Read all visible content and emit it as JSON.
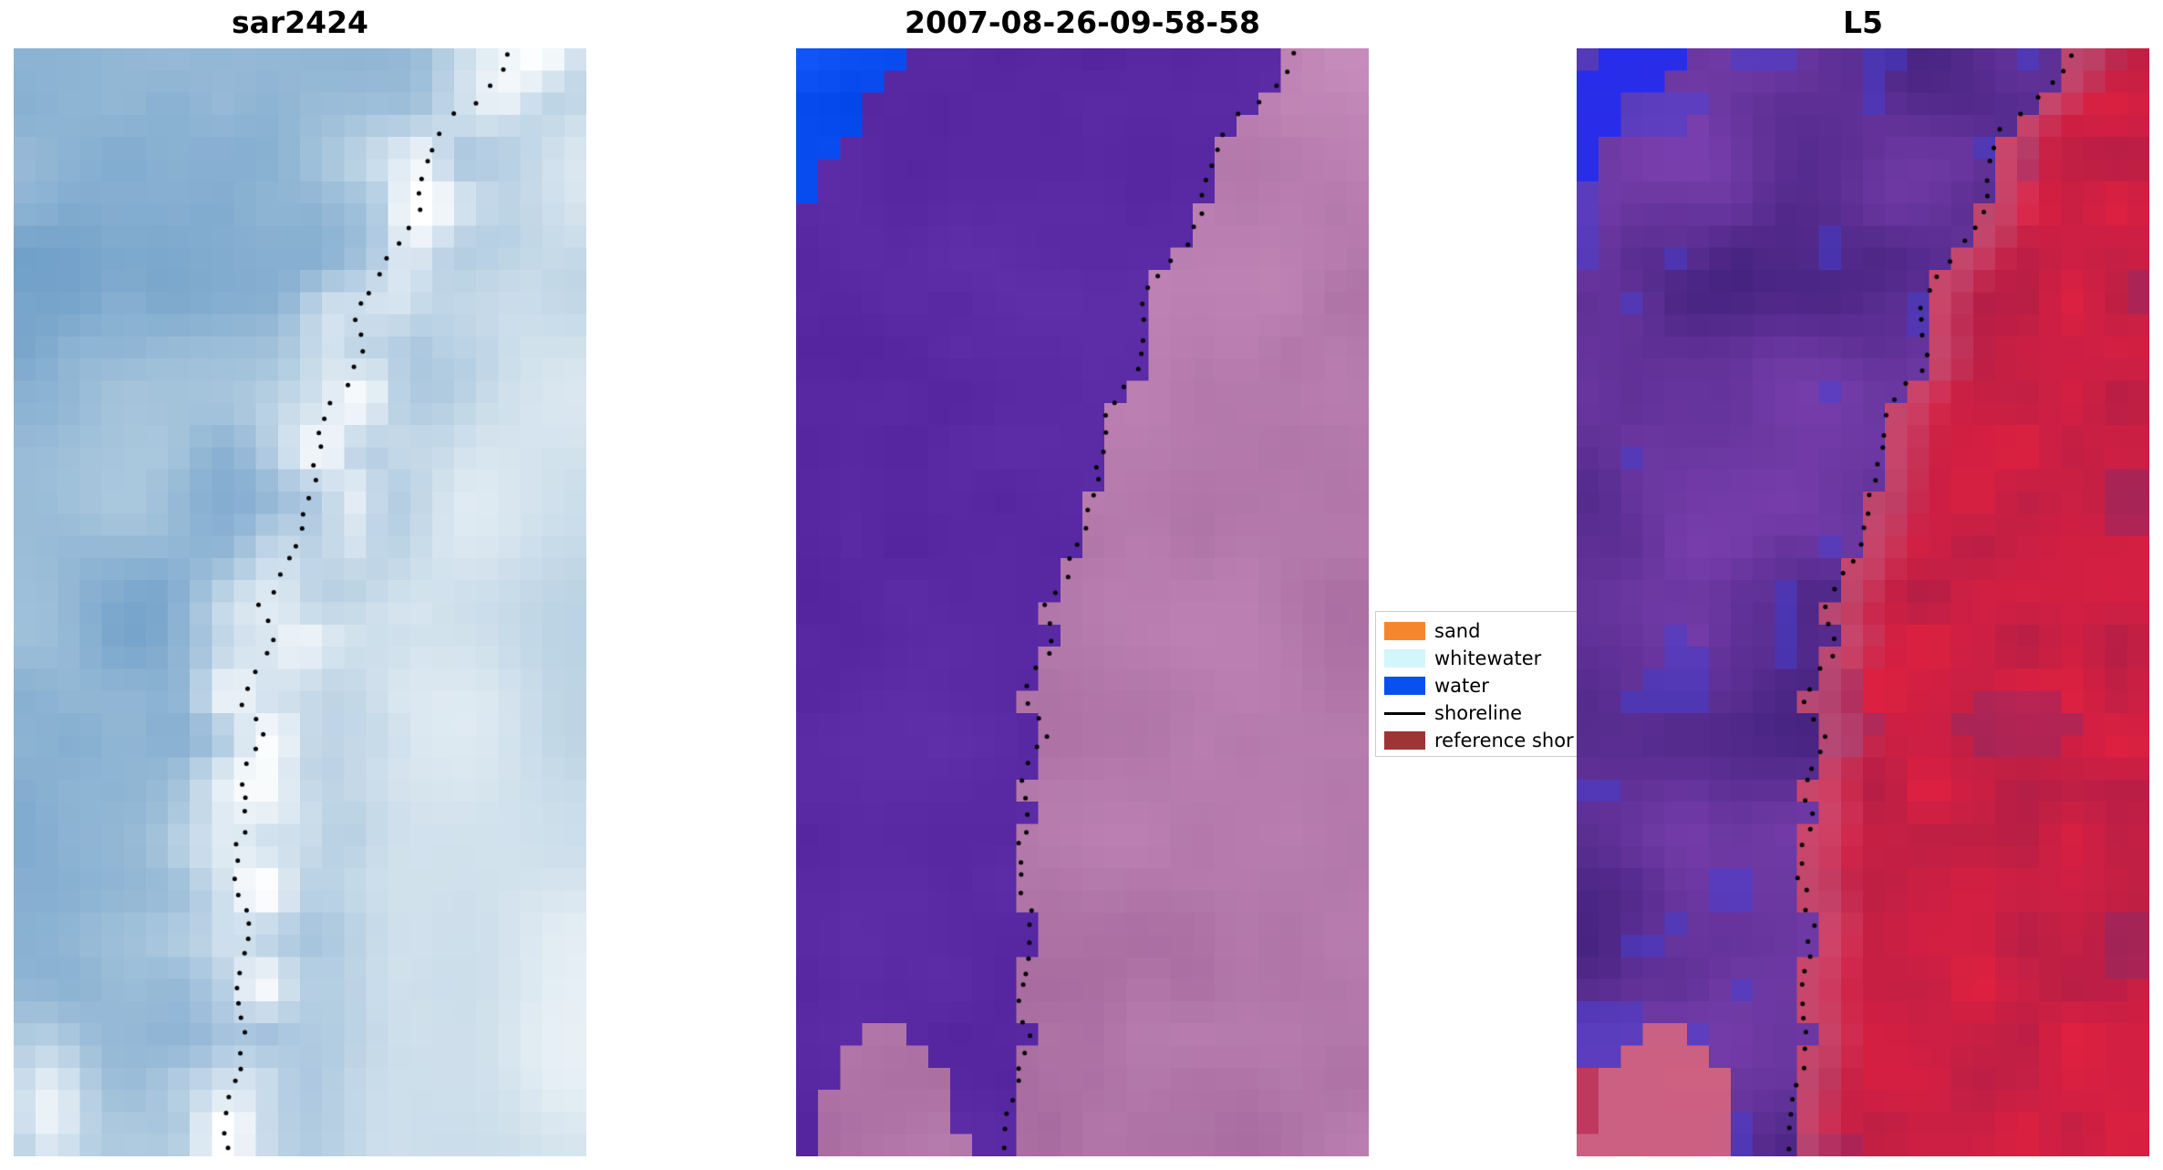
{
  "figure": {
    "background": "#ffffff",
    "panels": [
      {
        "id": "sar",
        "title": "sar2424",
        "palette": {
          "water_dark": "#5d92c2",
          "water_light": "#a9c7dd",
          "pale_right": "#c8dce8",
          "highlight": "#ffffff"
        }
      },
      {
        "id": "classified",
        "title": "2007-08-26-09-58-58",
        "palette": {
          "water": "#5b2ba6",
          "land_dark": "#a06398",
          "land_light": "#c98fbe",
          "water_patch": "#0a4ef2"
        }
      },
      {
        "id": "l5",
        "title": "L5",
        "palette": {
          "purple_dark": "#41207c",
          "purple_light": "#7a3fae",
          "blue_tint": "#3d3fd6",
          "red_dark": "#b41e46",
          "red_light": "#e02040",
          "magenta": "#8a2a6a",
          "pink_transition": "#c06088",
          "water_patch": "#1f2bf0",
          "blob_pink": "#d06080"
        }
      }
    ],
    "legend": {
      "border_color": "#cccccc",
      "items": [
        {
          "label": "sand",
          "swatch": "patch",
          "color": "#f5862d"
        },
        {
          "label": "whitewater",
          "swatch": "patch",
          "color": "#d3f6fa"
        },
        {
          "label": "water",
          "swatch": "patch",
          "color": "#0a50f0"
        },
        {
          "label": "shoreline",
          "swatch": "line",
          "color": "#000000"
        },
        {
          "label": "reference shor",
          "swatch": "patch",
          "color": "#9e3434",
          "truncated": true
        }
      ]
    }
  },
  "chart_data": {
    "type": "heatmap",
    "subplots": [
      {
        "title": "sar2424",
        "content": "pixelated blue satellite/SAR tile: steel-blue sea on left, bright white surf/cloud band along the coast, pale mottled blue-white land on right, black dotted detected shoreline overlay"
      },
      {
        "title": "2007-08-26-09-58-58",
        "content": "classified tile: solid purple water mass on left, pink land on right of jagged boundary, bright blue water wedge in top-left corner, pink sand blob at bottom-left, black dotted detected shoreline overlay"
      },
      {
        "title": "L5",
        "content": "Landsat-5 false-colour tile: noisy indigo/purple water on left with blue speckles, crimson-red land on right with pink transition at the boundary, bright blue wedge top-left, pink blob bottom-left, black dotted detected shoreline overlay"
      }
    ],
    "legend_entries": [
      "sand",
      "whitewater",
      "water",
      "shoreline",
      "reference shor"
    ],
    "shoreline_points_norm": [
      [
        0.87,
        0.0
      ],
      [
        0.855,
        0.018
      ],
      [
        0.83,
        0.035
      ],
      [
        0.8,
        0.05
      ],
      [
        0.77,
        0.062
      ],
      [
        0.745,
        0.075
      ],
      [
        0.73,
        0.092
      ],
      [
        0.72,
        0.11
      ],
      [
        0.715,
        0.13
      ],
      [
        0.705,
        0.15
      ],
      [
        0.69,
        0.168
      ],
      [
        0.665,
        0.185
      ],
      [
        0.64,
        0.2
      ],
      [
        0.62,
        0.215
      ],
      [
        0.605,
        0.232
      ],
      [
        0.6,
        0.25
      ],
      [
        0.61,
        0.268
      ],
      [
        0.605,
        0.285
      ],
      [
        0.585,
        0.3
      ],
      [
        0.56,
        0.315
      ],
      [
        0.545,
        0.332
      ],
      [
        0.535,
        0.35
      ],
      [
        0.528,
        0.37
      ],
      [
        0.522,
        0.39
      ],
      [
        0.515,
        0.41
      ],
      [
        0.505,
        0.428
      ],
      [
        0.495,
        0.445
      ],
      [
        0.483,
        0.462
      ],
      [
        0.468,
        0.478
      ],
      [
        0.45,
        0.492
      ],
      [
        0.432,
        0.505
      ],
      [
        0.44,
        0.518
      ],
      [
        0.452,
        0.53
      ],
      [
        0.445,
        0.545
      ],
      [
        0.425,
        0.558
      ],
      [
        0.408,
        0.572
      ],
      [
        0.4,
        0.588
      ],
      [
        0.415,
        0.602
      ],
      [
        0.435,
        0.615
      ],
      [
        0.432,
        0.63
      ],
      [
        0.41,
        0.643
      ],
      [
        0.398,
        0.658
      ],
      [
        0.4,
        0.675
      ],
      [
        0.408,
        0.69
      ],
      [
        0.402,
        0.705
      ],
      [
        0.392,
        0.722
      ],
      [
        0.388,
        0.74
      ],
      [
        0.395,
        0.758
      ],
      [
        0.405,
        0.775
      ],
      [
        0.412,
        0.792
      ],
      [
        0.408,
        0.81
      ],
      [
        0.398,
        0.828
      ],
      [
        0.39,
        0.845
      ],
      [
        0.392,
        0.862
      ],
      [
        0.4,
        0.878
      ],
      [
        0.405,
        0.893
      ],
      [
        0.398,
        0.908
      ],
      [
        0.388,
        0.925
      ],
      [
        0.38,
        0.942
      ],
      [
        0.374,
        0.96
      ],
      [
        0.37,
        0.978
      ],
      [
        0.367,
        1.0
      ]
    ]
  }
}
